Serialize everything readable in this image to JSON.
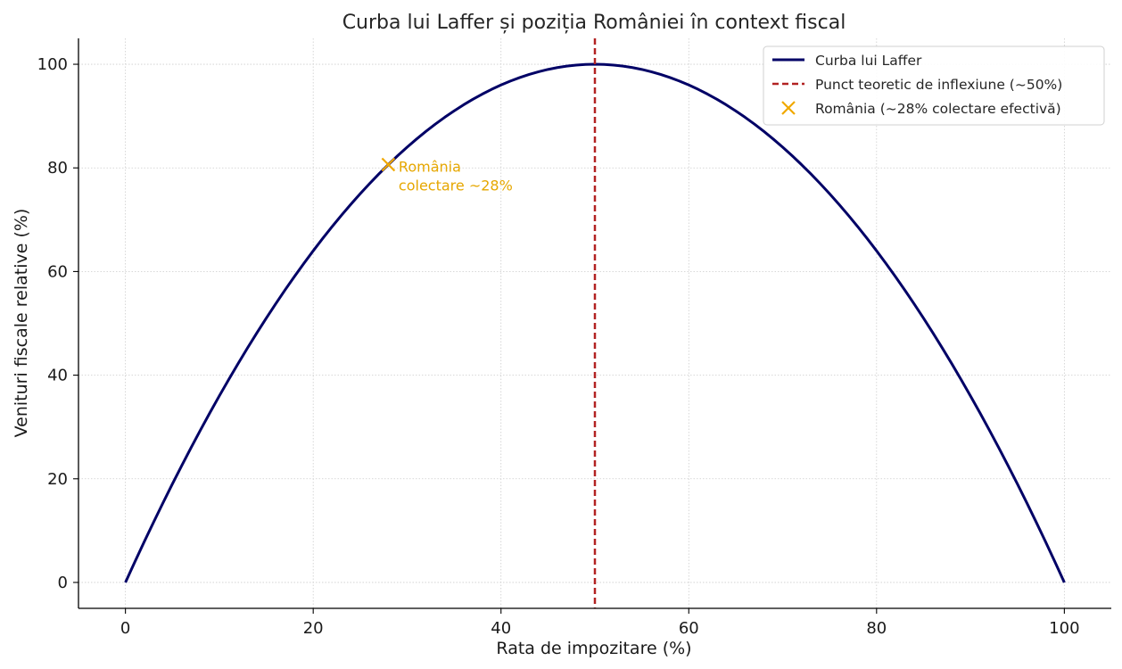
{
  "chart_data": {
    "type": "line",
    "title": "Curba lui Laffer și poziția României în context fiscal",
    "xlabel": "Rata de impozitare (%)",
    "ylabel": "Venituri fiscale relative (%)",
    "xlim": [
      -5,
      105
    ],
    "ylim": [
      -5,
      105
    ],
    "xticks": [
      0,
      20,
      40,
      60,
      80,
      100
    ],
    "yticks": [
      0,
      20,
      40,
      60,
      80,
      100
    ],
    "grid": true,
    "legend_position": "top-right",
    "series": [
      {
        "name": "Curba lui Laffer",
        "kind": "line",
        "color": "#000066",
        "x": [
          0,
          5,
          10,
          15,
          20,
          25,
          30,
          35,
          40,
          45,
          50,
          55,
          60,
          65,
          70,
          75,
          80,
          85,
          90,
          95,
          100
        ],
        "y": [
          0,
          19,
          36,
          51,
          64,
          75,
          84,
          91,
          96,
          99,
          100,
          99,
          96,
          91,
          84,
          75,
          64,
          51,
          36,
          19,
          0
        ]
      },
      {
        "name": "Punct teoretic de inflexiune (~50%)",
        "kind": "vline",
        "color": "#b22222",
        "x": 50
      },
      {
        "name": "România (~28% colectare efectivă)",
        "kind": "marker",
        "color": "#f0a800",
        "x": 28,
        "y": 80.64
      }
    ],
    "annotations": [
      {
        "lines": [
          "România",
          "colectare ~28%"
        ],
        "x": 29,
        "y": 80.64,
        "color": "#e6a700"
      }
    ]
  }
}
